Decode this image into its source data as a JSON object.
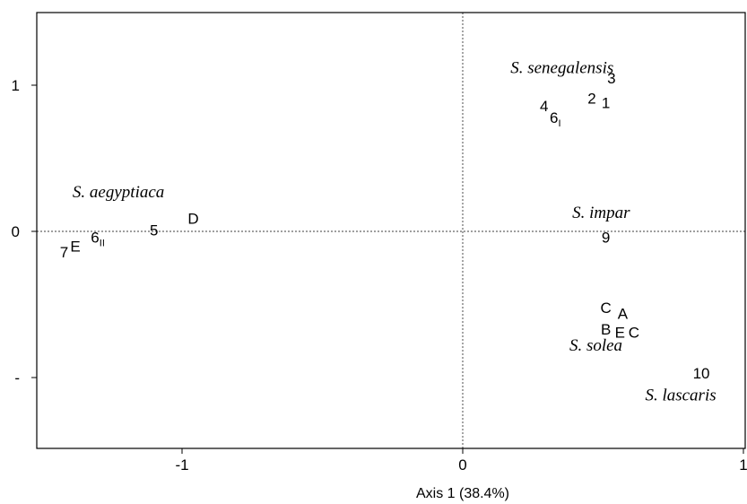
{
  "chart_data": {
    "type": "scatter",
    "title": "",
    "xlabel": "Axis 1 (38.4%)",
    "ylabel": "",
    "xlim": [
      -1.52,
      1.0
    ],
    "ylim": [
      -1.5,
      1.5
    ],
    "x_ticks": [
      {
        "value": -1,
        "label": "-1"
      },
      {
        "value": 0,
        "label": "0"
      },
      {
        "value": 1,
        "label": "1"
      }
    ],
    "y_ticks": [
      {
        "value": 1,
        "label": "1"
      },
      {
        "value": 0,
        "label": "0"
      },
      {
        "value": -1,
        "label": "-"
      }
    ],
    "zero_lines": true,
    "grid": false,
    "points": [
      {
        "label": "3",
        "x": 0.53,
        "y": 1.05
      },
      {
        "label": "2",
        "x": 0.46,
        "y": 0.91
      },
      {
        "label": "1",
        "x": 0.51,
        "y": 0.88
      },
      {
        "label": "4",
        "x": 0.29,
        "y": 0.86
      },
      {
        "label": "6",
        "sub": "I",
        "x": 0.33,
        "y": 0.78
      },
      {
        "label": "D",
        "x": -0.96,
        "y": 0.09
      },
      {
        "label": "5",
        "x": -1.1,
        "y": 0.01
      },
      {
        "label": "6",
        "sub": "II",
        "x": -1.3,
        "y": -0.04
      },
      {
        "label": "E",
        "x": -1.38,
        "y": -0.1
      },
      {
        "label": "7",
        "x": -1.42,
        "y": -0.14
      },
      {
        "label": "9",
        "x": 0.51,
        "y": -0.04
      },
      {
        "label": "C",
        "x": 0.51,
        "y": -0.52
      },
      {
        "label": "A",
        "x": 0.57,
        "y": -0.56
      },
      {
        "label": "B",
        "x": 0.51,
        "y": -0.67
      },
      {
        "label": "E",
        "x": 0.56,
        "y": -0.69
      },
      {
        "label": "C",
        "x": 0.61,
        "y": -0.69
      },
      {
        "label": "10",
        "x": 0.85,
        "y": -0.97
      }
    ],
    "species_labels": [
      {
        "label": "S. senegalensis",
        "x": 0.17,
        "y": 1.12
      },
      {
        "label": "S. aegyptiaca",
        "x": -1.39,
        "y": 0.27
      },
      {
        "label": "S. impar",
        "x": 0.39,
        "y": 0.13
      },
      {
        "label": "S. solea",
        "x": 0.38,
        "y": -0.78
      },
      {
        "label": "S. lascaris",
        "x": 0.65,
        "y": -1.12
      }
    ]
  }
}
